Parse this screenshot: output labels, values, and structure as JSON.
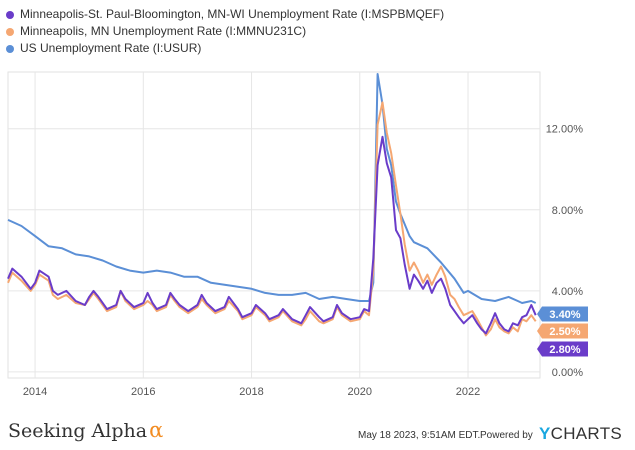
{
  "legend": [
    {
      "label": "Minneapolis-St. Paul-Bloomington, MN-WI Unemployment Rate    (I:MSPBMQEF)",
      "color": "#6a3cc9"
    },
    {
      "label": "Minneapolis, MN Unemployment Rate (I:MMNU231C)",
      "color": "#f5a772"
    },
    {
      "label": "US Unemployment Rate (I:USUR)",
      "color": "#5b8fd6"
    }
  ],
  "footer": {
    "brand": "Seeking Alpha",
    "brand_mark": "α",
    "timestamp": "May 18 2023, 9:51AM EDT.",
    "powered_by": "Powered by",
    "ycharts_y": "Y",
    "ycharts_rest": "CHARTS"
  },
  "chart_data": {
    "type": "line",
    "title": "",
    "xlabel": "",
    "ylabel": "",
    "x_range": [
      2013.5,
      2023.33
    ],
    "ylim": [
      -0.3,
      14.8
    ],
    "x_ticks": [
      2014,
      2016,
      2018,
      2020,
      2022
    ],
    "x_tick_labels": [
      "2014",
      "2016",
      "2018",
      "2020",
      "2022"
    ],
    "y_ticks": [
      0,
      4,
      8,
      12
    ],
    "y_tick_labels": [
      "0.00%",
      "4.00%",
      "8.00%",
      "12.00%"
    ],
    "grid": true,
    "series": [
      {
        "name": "US Unemployment Rate (I:USUR)",
        "color": "#5b8fd6",
        "end_label": "3.40%",
        "points": [
          [
            2013.5,
            7.5
          ],
          [
            2013.75,
            7.2
          ],
          [
            2014.0,
            6.7
          ],
          [
            2014.25,
            6.2
          ],
          [
            2014.5,
            6.1
          ],
          [
            2014.75,
            5.8
          ],
          [
            2015.0,
            5.7
          ],
          [
            2015.25,
            5.5
          ],
          [
            2015.5,
            5.2
          ],
          [
            2015.75,
            5.0
          ],
          [
            2016.0,
            4.9
          ],
          [
            2016.25,
            5.0
          ],
          [
            2016.5,
            4.9
          ],
          [
            2016.75,
            4.7
          ],
          [
            2017.0,
            4.7
          ],
          [
            2017.25,
            4.4
          ],
          [
            2017.5,
            4.3
          ],
          [
            2017.75,
            4.2
          ],
          [
            2018.0,
            4.1
          ],
          [
            2018.25,
            3.9
          ],
          [
            2018.5,
            3.8
          ],
          [
            2018.75,
            3.8
          ],
          [
            2019.0,
            3.9
          ],
          [
            2019.25,
            3.6
          ],
          [
            2019.5,
            3.7
          ],
          [
            2019.75,
            3.6
          ],
          [
            2020.0,
            3.5
          ],
          [
            2020.17,
            3.5
          ],
          [
            2020.25,
            4.4
          ],
          [
            2020.33,
            14.7
          ],
          [
            2020.42,
            13.2
          ],
          [
            2020.5,
            11.0
          ],
          [
            2020.58,
            10.2
          ],
          [
            2020.67,
            8.4
          ],
          [
            2020.75,
            7.8
          ],
          [
            2020.92,
            6.7
          ],
          [
            2021.0,
            6.4
          ],
          [
            2021.25,
            6.1
          ],
          [
            2021.5,
            5.4
          ],
          [
            2021.75,
            4.6
          ],
          [
            2021.92,
            3.9
          ],
          [
            2022.0,
            4.0
          ],
          [
            2022.25,
            3.6
          ],
          [
            2022.5,
            3.5
          ],
          [
            2022.75,
            3.7
          ],
          [
            2022.92,
            3.5
          ],
          [
            2023.0,
            3.4
          ],
          [
            2023.17,
            3.5
          ],
          [
            2023.25,
            3.4
          ]
        ]
      },
      {
        "name": "Minneapolis, MN Unemployment Rate (I:MMNU231C)",
        "color": "#f5a772",
        "end_label": "2.50%",
        "points": [
          [
            2013.5,
            4.4
          ],
          [
            2013.58,
            4.9
          ],
          [
            2013.75,
            4.5
          ],
          [
            2013.92,
            4.0
          ],
          [
            2014.0,
            4.3
          ],
          [
            2014.08,
            4.8
          ],
          [
            2014.25,
            4.5
          ],
          [
            2014.33,
            3.8
          ],
          [
            2014.42,
            3.6
          ],
          [
            2014.58,
            3.8
          ],
          [
            2014.75,
            3.4
          ],
          [
            2014.92,
            3.3
          ],
          [
            2015.0,
            3.6
          ],
          [
            2015.08,
            3.9
          ],
          [
            2015.17,
            3.6
          ],
          [
            2015.33,
            3.0
          ],
          [
            2015.5,
            3.2
          ],
          [
            2015.58,
            4.0
          ],
          [
            2015.67,
            3.5
          ],
          [
            2015.83,
            3.1
          ],
          [
            2016.0,
            3.3
          ],
          [
            2016.08,
            3.5
          ],
          [
            2016.17,
            3.3
          ],
          [
            2016.25,
            3.0
          ],
          [
            2016.42,
            3.2
          ],
          [
            2016.5,
            3.8
          ],
          [
            2016.58,
            3.5
          ],
          [
            2016.67,
            3.2
          ],
          [
            2016.83,
            2.9
          ],
          [
            2017.0,
            3.2
          ],
          [
            2017.08,
            3.6
          ],
          [
            2017.17,
            3.3
          ],
          [
            2017.33,
            2.9
          ],
          [
            2017.5,
            3.1
          ],
          [
            2017.58,
            3.5
          ],
          [
            2017.75,
            3.0
          ],
          [
            2017.83,
            2.6
          ],
          [
            2018.0,
            2.8
          ],
          [
            2018.08,
            3.2
          ],
          [
            2018.25,
            2.8
          ],
          [
            2018.33,
            2.5
          ],
          [
            2018.5,
            2.7
          ],
          [
            2018.58,
            3.0
          ],
          [
            2018.75,
            2.5
          ],
          [
            2018.92,
            2.3
          ],
          [
            2019.0,
            2.6
          ],
          [
            2019.08,
            3.0
          ],
          [
            2019.25,
            2.5
          ],
          [
            2019.33,
            2.4
          ],
          [
            2019.5,
            2.6
          ],
          [
            2019.58,
            3.2
          ],
          [
            2019.67,
            2.8
          ],
          [
            2019.83,
            2.5
          ],
          [
            2020.0,
            2.6
          ],
          [
            2020.08,
            3.0
          ],
          [
            2020.17,
            2.8
          ],
          [
            2020.25,
            5.0
          ],
          [
            2020.33,
            12.2
          ],
          [
            2020.42,
            13.3
          ],
          [
            2020.5,
            11.8
          ],
          [
            2020.58,
            10.8
          ],
          [
            2020.67,
            9.2
          ],
          [
            2020.75,
            7.8
          ],
          [
            2020.83,
            6.3
          ],
          [
            2020.92,
            5.0
          ],
          [
            2021.0,
            5.4
          ],
          [
            2021.08,
            5.0
          ],
          [
            2021.17,
            4.4
          ],
          [
            2021.25,
            4.8
          ],
          [
            2021.33,
            4.3
          ],
          [
            2021.42,
            4.8
          ],
          [
            2021.5,
            5.2
          ],
          [
            2021.58,
            4.7
          ],
          [
            2021.67,
            3.8
          ],
          [
            2021.75,
            3.6
          ],
          [
            2021.83,
            3.2
          ],
          [
            2021.92,
            2.8
          ],
          [
            2022.0,
            2.9
          ],
          [
            2022.08,
            3.0
          ],
          [
            2022.17,
            2.6
          ],
          [
            2022.25,
            2.2
          ],
          [
            2022.33,
            1.8
          ],
          [
            2022.42,
            2.1
          ],
          [
            2022.5,
            2.6
          ],
          [
            2022.58,
            2.2
          ],
          [
            2022.67,
            2.0
          ],
          [
            2022.75,
            1.9
          ],
          [
            2022.83,
            2.2
          ],
          [
            2022.92,
            2.0
          ],
          [
            2023.0,
            2.6
          ],
          [
            2023.08,
            2.5
          ],
          [
            2023.17,
            2.8
          ],
          [
            2023.25,
            2.5
          ]
        ]
      },
      {
        "name": "Minneapolis-St. Paul-Bloomington, MN-WI Unemployment Rate (I:MSPBMQEF)",
        "color": "#6a3cc9",
        "end_label": "2.80%",
        "points": [
          [
            2013.5,
            4.6
          ],
          [
            2013.58,
            5.1
          ],
          [
            2013.75,
            4.7
          ],
          [
            2013.92,
            4.1
          ],
          [
            2014.0,
            4.4
          ],
          [
            2014.08,
            5.0
          ],
          [
            2014.25,
            4.7
          ],
          [
            2014.33,
            4.0
          ],
          [
            2014.42,
            3.8
          ],
          [
            2014.58,
            4.0
          ],
          [
            2014.75,
            3.5
          ],
          [
            2014.92,
            3.3
          ],
          [
            2015.0,
            3.7
          ],
          [
            2015.08,
            4.0
          ],
          [
            2015.17,
            3.7
          ],
          [
            2015.33,
            3.1
          ],
          [
            2015.5,
            3.3
          ],
          [
            2015.58,
            4.0
          ],
          [
            2015.67,
            3.6
          ],
          [
            2015.83,
            3.2
          ],
          [
            2016.0,
            3.4
          ],
          [
            2016.08,
            3.9
          ],
          [
            2016.17,
            3.4
          ],
          [
            2016.25,
            3.1
          ],
          [
            2016.42,
            3.3
          ],
          [
            2016.5,
            3.9
          ],
          [
            2016.58,
            3.6
          ],
          [
            2016.67,
            3.3
          ],
          [
            2016.83,
            3.0
          ],
          [
            2017.0,
            3.3
          ],
          [
            2017.08,
            3.8
          ],
          [
            2017.17,
            3.4
          ],
          [
            2017.33,
            3.0
          ],
          [
            2017.5,
            3.2
          ],
          [
            2017.58,
            3.7
          ],
          [
            2017.75,
            3.1
          ],
          [
            2017.83,
            2.7
          ],
          [
            2018.0,
            2.9
          ],
          [
            2018.08,
            3.3
          ],
          [
            2018.25,
            2.9
          ],
          [
            2018.33,
            2.6
          ],
          [
            2018.5,
            2.8
          ],
          [
            2018.58,
            3.1
          ],
          [
            2018.75,
            2.6
          ],
          [
            2018.92,
            2.4
          ],
          [
            2019.0,
            2.8
          ],
          [
            2019.08,
            3.2
          ],
          [
            2019.25,
            2.7
          ],
          [
            2019.33,
            2.5
          ],
          [
            2019.5,
            2.7
          ],
          [
            2019.58,
            3.3
          ],
          [
            2019.67,
            2.9
          ],
          [
            2019.83,
            2.6
          ],
          [
            2020.0,
            2.7
          ],
          [
            2020.08,
            3.1
          ],
          [
            2020.17,
            3.0
          ],
          [
            2020.25,
            5.6
          ],
          [
            2020.33,
            10.2
          ],
          [
            2020.42,
            11.6
          ],
          [
            2020.5,
            10.3
          ],
          [
            2020.58,
            9.6
          ],
          [
            2020.67,
            7.0
          ],
          [
            2020.75,
            6.6
          ],
          [
            2020.83,
            5.3
          ],
          [
            2020.92,
            4.1
          ],
          [
            2021.0,
            4.8
          ],
          [
            2021.08,
            4.5
          ],
          [
            2021.17,
            4.1
          ],
          [
            2021.25,
            4.5
          ],
          [
            2021.33,
            3.9
          ],
          [
            2021.42,
            4.4
          ],
          [
            2021.5,
            4.6
          ],
          [
            2021.58,
            4.1
          ],
          [
            2021.67,
            3.3
          ],
          [
            2021.75,
            3.0
          ],
          [
            2021.83,
            2.7
          ],
          [
            2021.92,
            2.4
          ],
          [
            2022.0,
            2.6
          ],
          [
            2022.08,
            2.8
          ],
          [
            2022.17,
            2.4
          ],
          [
            2022.25,
            2.1
          ],
          [
            2022.33,
            1.9
          ],
          [
            2022.42,
            2.4
          ],
          [
            2022.5,
            2.9
          ],
          [
            2022.58,
            2.4
          ],
          [
            2022.67,
            2.1
          ],
          [
            2022.75,
            2.0
          ],
          [
            2022.83,
            2.4
          ],
          [
            2022.92,
            2.3
          ],
          [
            2023.0,
            2.7
          ],
          [
            2023.08,
            2.8
          ],
          [
            2023.17,
            3.3
          ],
          [
            2023.25,
            2.8
          ]
        ]
      }
    ]
  }
}
